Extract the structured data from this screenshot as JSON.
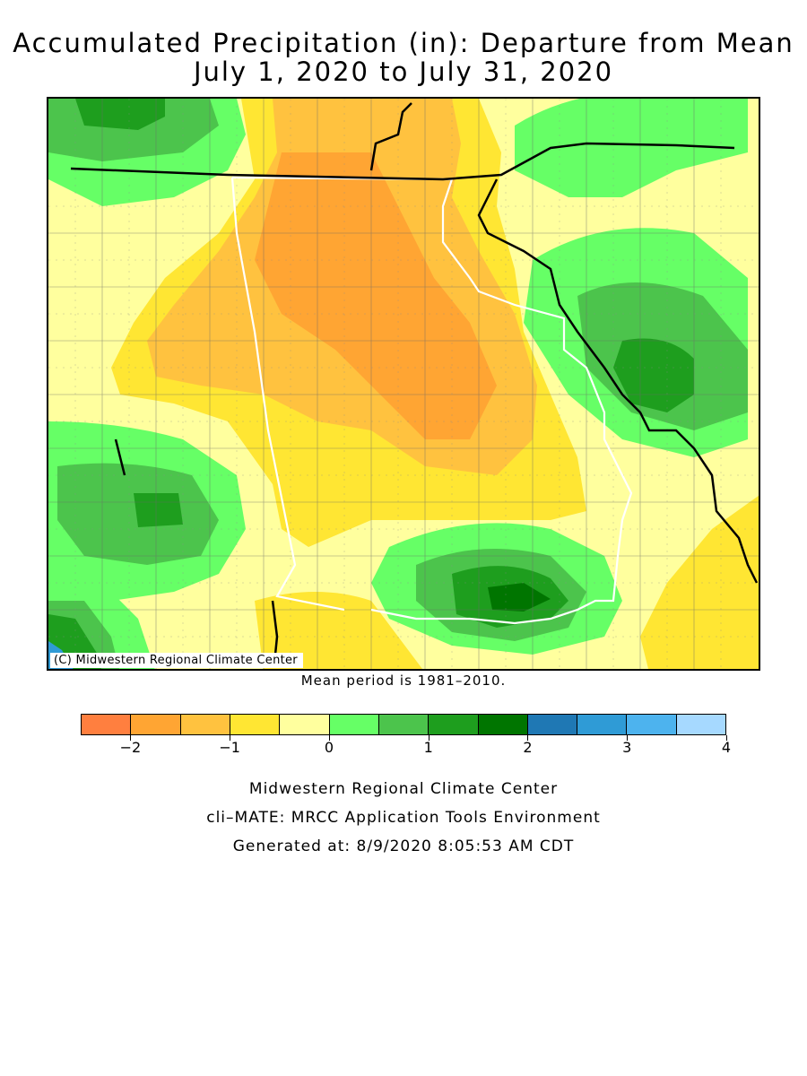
{
  "title_line1": "Accumulated Precipitation (in): Departure from Mean",
  "title_line2": "July 1, 2020 to July 31, 2020",
  "credit": "(C) Midwestern Regional Climate Center",
  "mean_note": "Mean period is 1981–2010.",
  "legend": {
    "colors": [
      "#ff7f3f",
      "#ffa533",
      "#ffc23f",
      "#ffe633",
      "#ffff9e",
      "#66ff66",
      "#4cc44c",
      "#1e9e1e",
      "#007500",
      "#1f78b4",
      "#2f9bd6",
      "#4db3ee",
      "#a6d9ff"
    ],
    "tick_labels": [
      "−2",
      "−1",
      "0",
      "1",
      "2",
      "3",
      "4"
    ]
  },
  "map": {
    "colors": {
      "near_normal": "#ffff9e",
      "dry_025": "#ffe633",
      "dry_05": "#ffc23f",
      "dry_1": "#ffa533",
      "wet_025": "#66ff66",
      "wet_05": "#4cc44c",
      "wet_1": "#1e9e1e",
      "wet_15": "#007500",
      "wet_2": "#1f78b4",
      "state_line": "#ffffff",
      "national_line": "#000000",
      "county_line": "#555555"
    }
  },
  "footer": {
    "line1": "Midwestern Regional Climate Center",
    "line2": "cli–MATE: MRCC Application Tools Environment",
    "line3": "Generated at: 8/9/2020 8:05:53 AM CDT"
  }
}
